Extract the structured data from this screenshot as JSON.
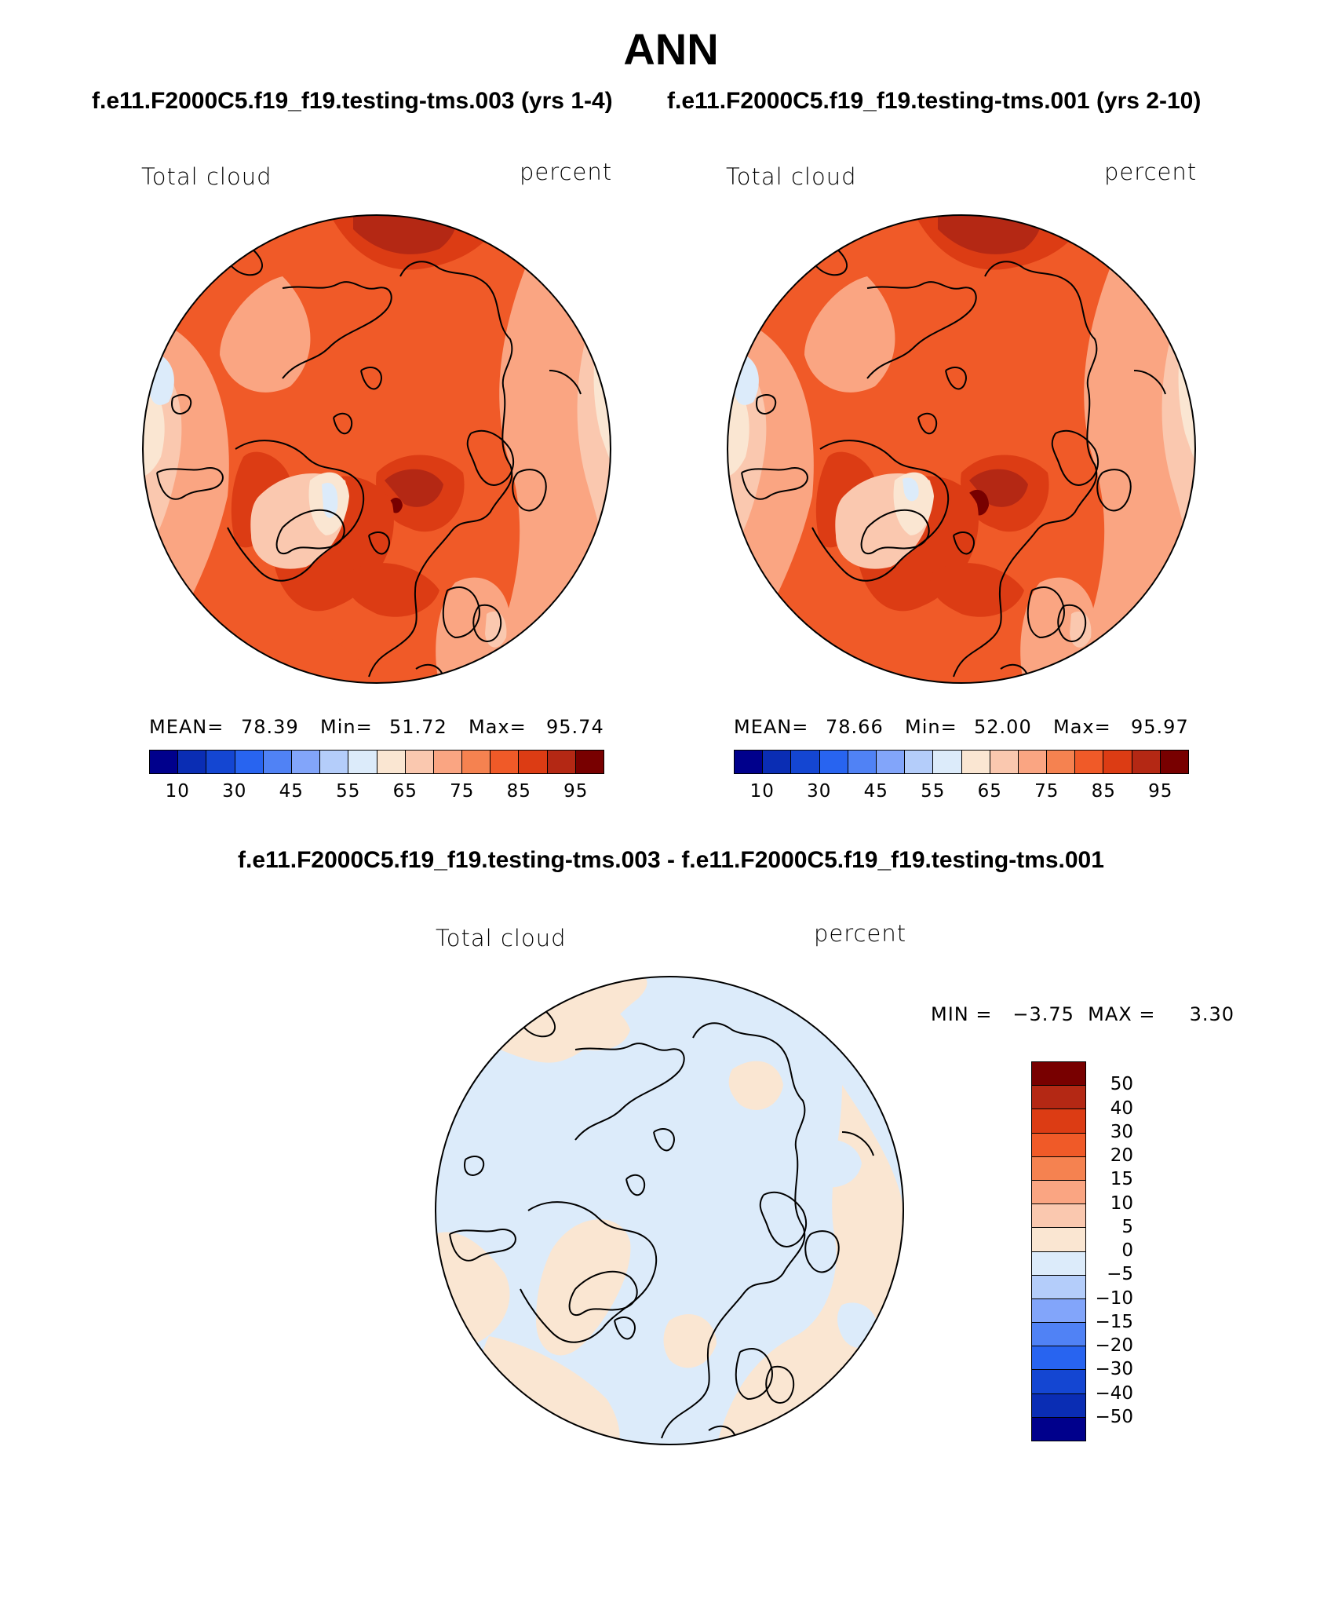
{
  "header": {
    "title": "ANN",
    "subtitle_left": "f.e11.F2000C5.f19_f19.testing-tms.003 (yrs 1-4)",
    "subtitle_right": "f.e11.F2000C5.f19_f19.testing-tms.001 (yrs 2-10)",
    "diff_title": "f.e11.F2000C5.f19_f19.testing-tms.003 - f.e11.F2000C5.f19_f19.testing-tms.001"
  },
  "panels": {
    "left": {
      "variable": "Total cloud",
      "units": "percent",
      "mean_label": "MEAN=",
      "mean": "78.39",
      "min_label": "Min=",
      "min": "51.72",
      "max_label": "Max=",
      "max": "95.74"
    },
    "right": {
      "variable": "Total cloud",
      "units": "percent",
      "mean_label": "MEAN=",
      "mean": "78.66",
      "min_label": "Min=",
      "min": "52.00",
      "max_label": "Max=",
      "max": "95.97"
    },
    "diff": {
      "variable": "Total cloud",
      "units": "percent",
      "minmax": "MIN =   −3.75  MAX =     3.30"
    }
  },
  "colorbar_main": {
    "colors": [
      "#00008c",
      "#0a2db4",
      "#1446d2",
      "#2864f0",
      "#5082f5",
      "#82a5fa",
      "#b4cdfa",
      "#dcebfa",
      "#fae6d2",
      "#fac8af",
      "#faa582",
      "#f58250",
      "#f05a28",
      "#dc3c14",
      "#b42814",
      "#780000"
    ],
    "ticks": [
      "10",
      "30",
      "45",
      "55",
      "65",
      "75",
      "85",
      "95"
    ]
  },
  "colorbar_diff": {
    "colors": [
      "#780000",
      "#b42814",
      "#dc3c14",
      "#f05a28",
      "#f58250",
      "#faa582",
      "#fac8af",
      "#fae6d2",
      "#dcebfa",
      "#b4cdfa",
      "#82a5fa",
      "#5082f5",
      "#2864f0",
      "#1446d2",
      "#0a2db4",
      "#00008c"
    ],
    "ticks": [
      "50",
      "40",
      "30",
      "20",
      "15",
      "10",
      "5",
      "0",
      "−5",
      "−10",
      "−15",
      "−20",
      "−30",
      "−40",
      "−50"
    ]
  }
}
